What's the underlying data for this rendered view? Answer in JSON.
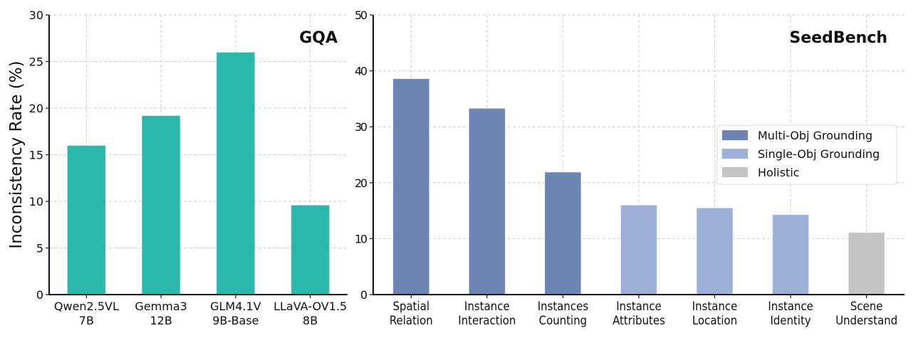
{
  "chart_data": [
    {
      "type": "bar",
      "title": "GQA",
      "xlabel": "",
      "ylabel": "Inconsistency Rate (%)",
      "categories": [
        [
          "Qwen2.5VL",
          "7B"
        ],
        [
          "Gemma3",
          "12B"
        ],
        [
          "GLM4.1V",
          "9B-Base"
        ],
        [
          "LLaVA-OV1.5",
          "8B"
        ]
      ],
      "values": [
        16.0,
        19.2,
        26.0,
        9.6
      ],
      "ylim": [
        0,
        30
      ],
      "yticks": [
        0,
        5,
        10,
        15,
        20,
        25,
        30
      ],
      "grid": true,
      "color": "#2ab7ac"
    },
    {
      "type": "bar",
      "title": "SeedBench",
      "xlabel": "",
      "ylabel": "",
      "categories": [
        [
          "Spatial",
          "Relation"
        ],
        [
          "Instance",
          "Interaction"
        ],
        [
          "Instances",
          "Counting"
        ],
        [
          "Instance",
          "Attributes"
        ],
        [
          "Instance",
          "Location"
        ],
        [
          "Instance",
          "Identity"
        ],
        [
          "Scene",
          "Understand"
        ]
      ],
      "values": [
        38.6,
        33.3,
        21.9,
        16.0,
        15.5,
        14.3,
        11.1
      ],
      "groups": [
        0,
        0,
        0,
        1,
        1,
        1,
        2
      ],
      "ylim": [
        0,
        50
      ],
      "yticks": [
        0,
        10,
        20,
        30,
        40,
        50
      ],
      "grid": true,
      "legend": {
        "placement": "center-right",
        "entries": [
          {
            "name": "Multi-Obj Grounding",
            "color": "#6e84b2"
          },
          {
            "name": "Single-Obj Grounding",
            "color": "#9db0d7"
          },
          {
            "name": "Holistic",
            "color": "#c4c4c4"
          }
        ]
      }
    }
  ]
}
